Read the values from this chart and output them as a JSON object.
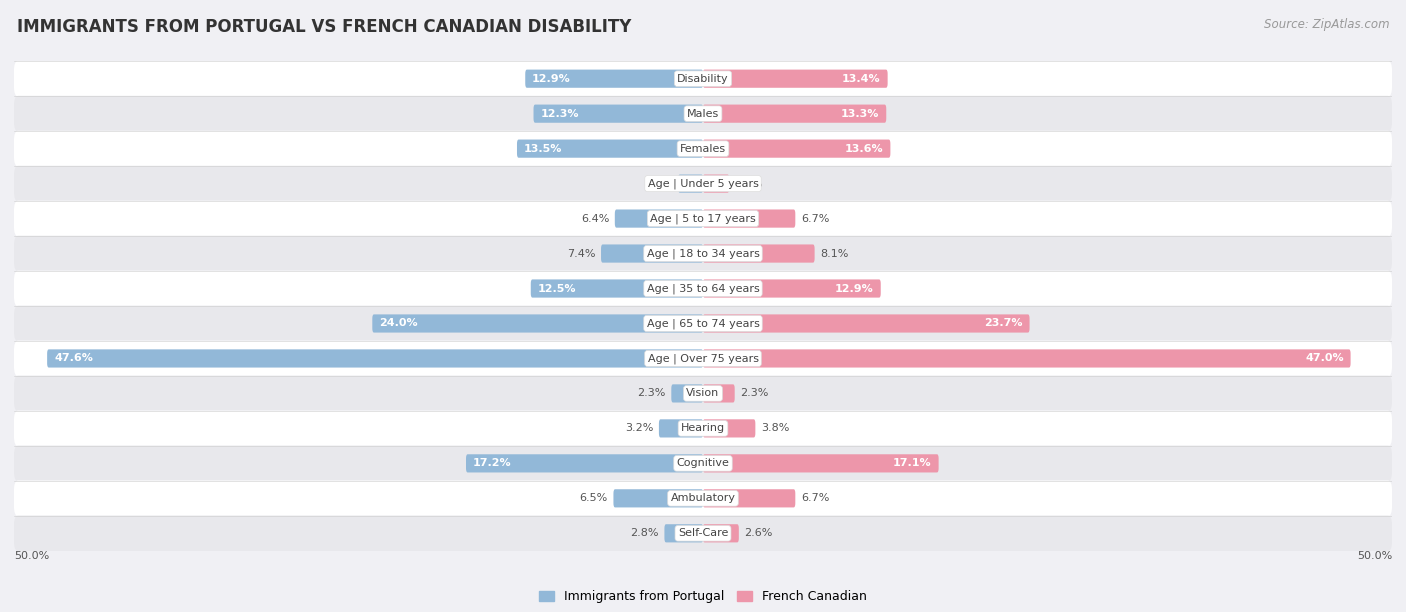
{
  "title": "IMMIGRANTS FROM PORTUGAL VS FRENCH CANADIAN DISABILITY",
  "source": "Source: ZipAtlas.com",
  "categories": [
    "Disability",
    "Males",
    "Females",
    "Age | Under 5 years",
    "Age | 5 to 17 years",
    "Age | 18 to 34 years",
    "Age | 35 to 64 years",
    "Age | 65 to 74 years",
    "Age | Over 75 years",
    "Vision",
    "Hearing",
    "Cognitive",
    "Ambulatory",
    "Self-Care"
  ],
  "left_values": [
    12.9,
    12.3,
    13.5,
    1.8,
    6.4,
    7.4,
    12.5,
    24.0,
    47.6,
    2.3,
    3.2,
    17.2,
    6.5,
    2.8
  ],
  "right_values": [
    13.4,
    13.3,
    13.6,
    1.9,
    6.7,
    8.1,
    12.9,
    23.7,
    47.0,
    2.3,
    3.8,
    17.1,
    6.7,
    2.6
  ],
  "left_color": "#92b8d8",
  "right_color": "#ed96aa",
  "axis_max": 50.0,
  "bg_white": "#ffffff",
  "bg_gray": "#e8e8ec",
  "title_fontsize": 12,
  "source_fontsize": 8.5,
  "bar_label_fontsize": 8,
  "category_fontsize": 8,
  "legend_fontsize": 9,
  "bar_height": 0.52
}
